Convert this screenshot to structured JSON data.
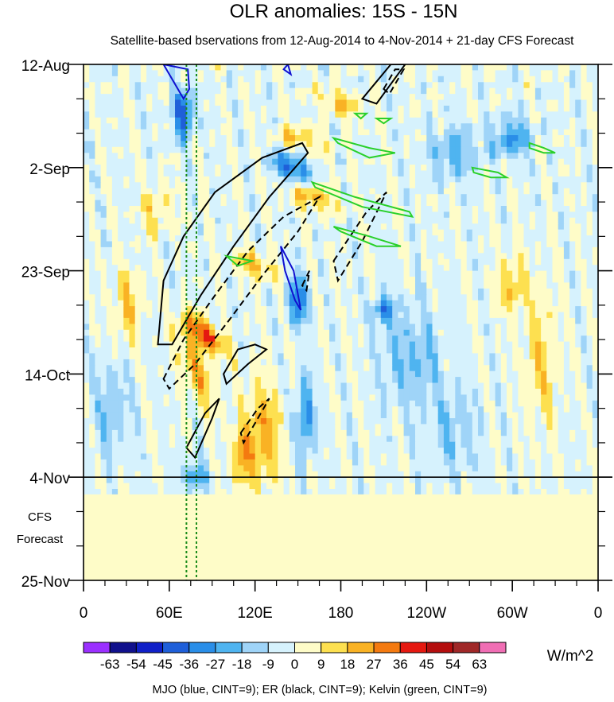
{
  "chart_data": {
    "type": "heatmap",
    "title": "OLR anomalies: 15S - 15N",
    "subtitle": "Satellite-based bservations from 12-Aug-2014 to 4-Nov-2014 + 21-day CFS Forecast",
    "xlabel": "",
    "ylabel": "",
    "x_ticks": [
      {
        "label": "0",
        "lon": 0
      },
      {
        "label": "60E",
        "lon": 60
      },
      {
        "label": "120E",
        "lon": 120
      },
      {
        "label": "180",
        "lon": 180
      },
      {
        "label": "120W",
        "lon": 240
      },
      {
        "label": "60W",
        "lon": 300
      },
      {
        "label": "0",
        "lon": 360
      }
    ],
    "xlim": [
      0,
      360
    ],
    "y_ticks": [
      {
        "label": "12-Aug",
        "day": 0
      },
      {
        "label": "2-Sep",
        "day": 21
      },
      {
        "label": "23-Sep",
        "day": 42
      },
      {
        "label": "14-Oct",
        "day": 63
      },
      {
        "label": "4-Nov",
        "day": 84
      },
      {
        "label": "25-Nov",
        "day": 105
      }
    ],
    "ylim": [
      0,
      105
    ],
    "observation_end_day": 84,
    "forecast_label": [
      "CFS",
      "Forecast"
    ],
    "colorbar": {
      "levels": [
        "-63",
        "-54",
        "-45",
        "-36",
        "-27",
        "-18",
        "-9",
        "0",
        "9",
        "18",
        "27",
        "36",
        "45",
        "54",
        "63"
      ],
      "colors": [
        "#9b30ff",
        "#10108c",
        "#1020c8",
        "#1f5fd9",
        "#2a8ee8",
        "#4fb4f0",
        "#9fd4f8",
        "#d6f2fd",
        "#fefcc8",
        "#fde050",
        "#f9b224",
        "#f47a10",
        "#e51810",
        "#b40e0e",
        "#a02828",
        "#f06eb4"
      ],
      "units": "W/m^2"
    },
    "footer": "MJO (blue, CINT=9); ER (black, CINT=9); Kelvin (green, CINT=9)",
    "reference_lines": [
      {
        "type": "vertical-dotted",
        "lon": 72,
        "color": "#1a8c1a"
      },
      {
        "type": "vertical-dotted",
        "lon": 79,
        "color": "#1a8c1a"
      }
    ],
    "colors": {
      "mjo": "#1010d0",
      "er": "#000000",
      "kelvin": "#2ad02a",
      "forecast_fill": "#fefcc8"
    }
  }
}
